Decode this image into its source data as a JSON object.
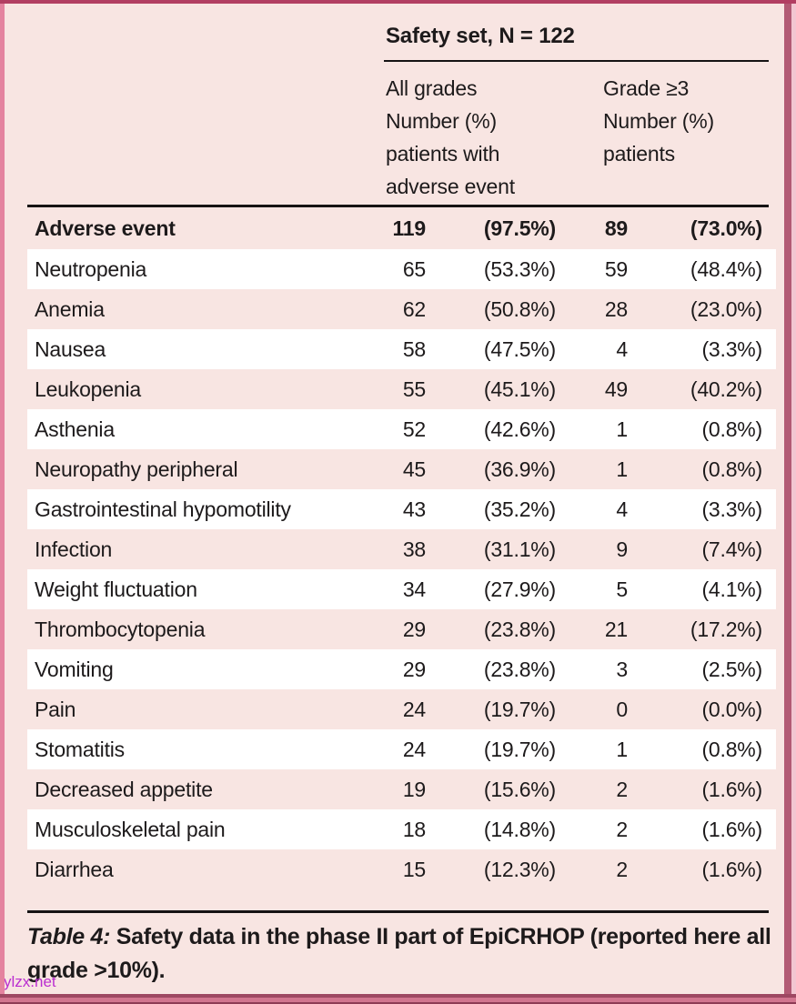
{
  "header": {
    "title": "Safety set, N = 122",
    "all_grades_lines": [
      "All grades",
      "Number (%)",
      "patients with",
      "adverse event"
    ],
    "grade3_lines": [
      "Grade ≥3",
      "Number (%)",
      "patients"
    ]
  },
  "table": {
    "header_row": {
      "label": "Adverse event",
      "n_all": "119",
      "pct_all": "(97.5%)",
      "n_g3": "89",
      "pct_g3": "(73.0%)"
    },
    "rows": [
      {
        "label": "Neutropenia",
        "n_all": "65",
        "pct_all": "(53.3%)",
        "n_g3": "59",
        "pct_g3": "(48.4%)"
      },
      {
        "label": "Anemia",
        "n_all": "62",
        "pct_all": "(50.8%)",
        "n_g3": "28",
        "pct_g3": "(23.0%)"
      },
      {
        "label": "Nausea",
        "n_all": "58",
        "pct_all": "(47.5%)",
        "n_g3": "4",
        "pct_g3": "(3.3%)"
      },
      {
        "label": "Leukopenia",
        "n_all": "55",
        "pct_all": "(45.1%)",
        "n_g3": "49",
        "pct_g3": "(40.2%)"
      },
      {
        "label": "Asthenia",
        "n_all": "52",
        "pct_all": "(42.6%)",
        "n_g3": "1",
        "pct_g3": "(0.8%)"
      },
      {
        "label": "Neuropathy peripheral",
        "n_all": "45",
        "pct_all": "(36.9%)",
        "n_g3": "1",
        "pct_g3": "(0.8%)"
      },
      {
        "label": "Gastrointestinal hypomotility",
        "n_all": "43",
        "pct_all": "(35.2%)",
        "n_g3": "4",
        "pct_g3": "(3.3%)"
      },
      {
        "label": "Infection",
        "n_all": "38",
        "pct_all": "(31.1%)",
        "n_g3": "9",
        "pct_g3": "(7.4%)"
      },
      {
        "label": "Weight fluctuation",
        "n_all": "34",
        "pct_all": "(27.9%)",
        "n_g3": "5",
        "pct_g3": "(4.1%)"
      },
      {
        "label": "Thrombocytopenia",
        "n_all": "29",
        "pct_all": "(23.8%)",
        "n_g3": "21",
        "pct_g3": "(17.2%)"
      },
      {
        "label": "Vomiting",
        "n_all": "29",
        "pct_all": "(23.8%)",
        "n_g3": "3",
        "pct_g3": "(2.5%)"
      },
      {
        "label": "Pain",
        "n_all": "24",
        "pct_all": "(19.7%)",
        "n_g3": "0",
        "pct_g3": "(0.0%)"
      },
      {
        "label": "Stomatitis",
        "n_all": "24",
        "pct_all": "(19.7%)",
        "n_g3": "1",
        "pct_g3": "(0.8%)"
      },
      {
        "label": "Decreased appetite",
        "n_all": "19",
        "pct_all": "(15.6%)",
        "n_g3": "2",
        "pct_g3": "(1.6%)"
      },
      {
        "label": "Musculoskeletal pain",
        "n_all": "18",
        "pct_all": "(14.8%)",
        "n_g3": "2",
        "pct_g3": "(1.6%)"
      },
      {
        "label": "Diarrhea",
        "n_all": "15",
        "pct_all": "(12.3%)",
        "n_g3": "2",
        "pct_g3": "(1.6%)"
      }
    ]
  },
  "caption": {
    "prefix": "Table 4:",
    "text": " Safety data in the phase II part of EpiCRHOP (reported here all grade >10%)."
  },
  "watermark": "ylzx.net",
  "colors": {
    "background": "#f8e5e2",
    "row_white": "#ffffff",
    "frame_pink": "#e4839f",
    "frame_dark": "#b23e62",
    "rule_black": "#161314",
    "watermark": "#bb2fd0"
  }
}
